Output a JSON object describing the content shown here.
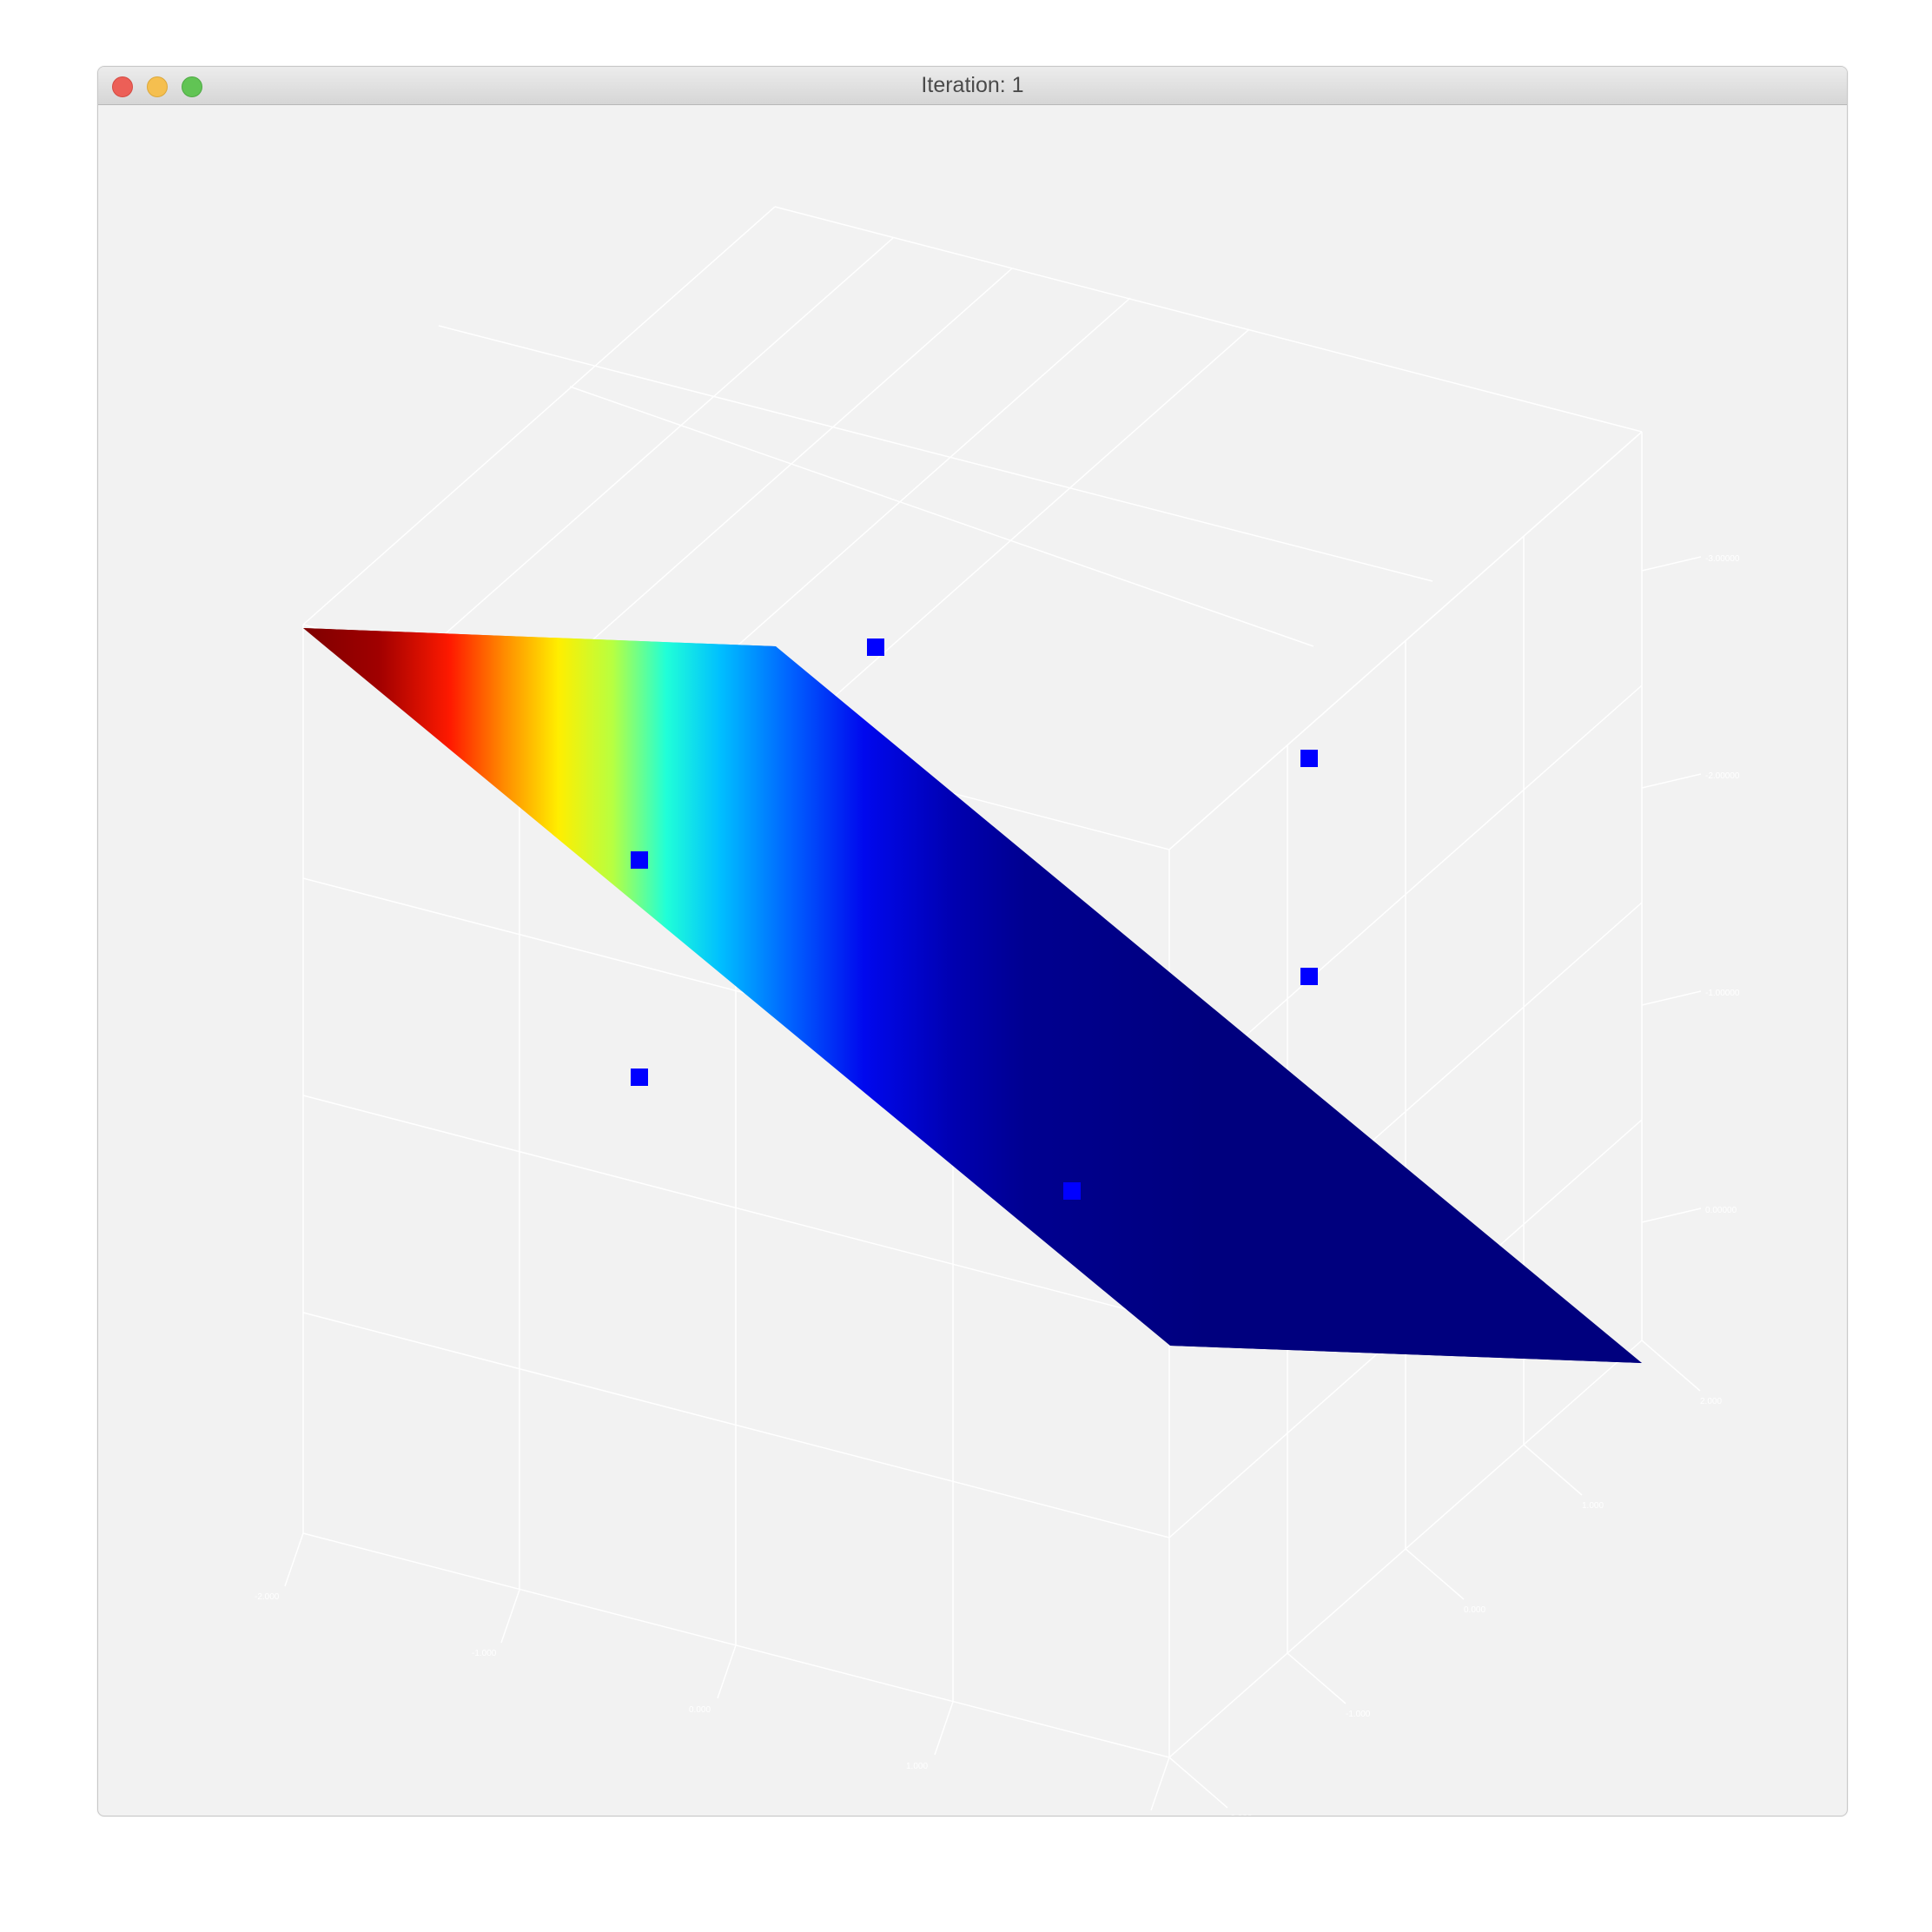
{
  "window": {
    "title": "Iteration: 1",
    "buttons": {
      "close": "close-button",
      "minimize": "minimize-button",
      "zoom": "zoom-button"
    }
  },
  "plot": {
    "type": "3d-surface-scatter",
    "colormap": "jet",
    "surface": "plane",
    "marker_color": "#0000ff",
    "background": "#f2f2f2",
    "gridline_color": "#ffffff",
    "points_count": 6
  }
}
